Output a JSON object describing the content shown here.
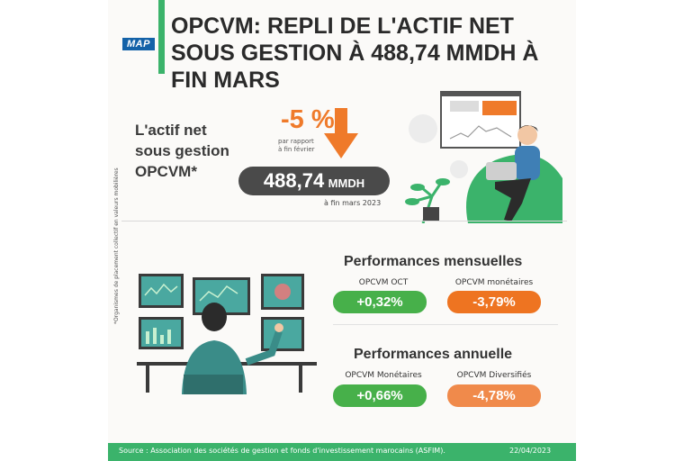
{
  "header": {
    "logo": "MAP",
    "title": "OPCVM: REPLI DE L'ACTIF NET SOUS GESTION À 488,74 MMDH À FIN MARS"
  },
  "side_note": "*Organismes de placement collectif en valeurs mobilières",
  "actif": {
    "label": "L'actif net sous gestion OPCVM*",
    "change": "-5 %",
    "change_note": "par rapport à fin février",
    "value": "488,74",
    "unit": "MMDH",
    "date_note": "à fin mars 2023"
  },
  "mensuelles": {
    "title": "Performances mensuelles",
    "items": [
      {
        "label": "OPCVM OCT",
        "value": "+0,32%",
        "color": "#47b04a"
      },
      {
        "label": "OPCVM monétaires",
        "value": "-3,79%",
        "color": "#ee7421"
      }
    ]
  },
  "annuelle": {
    "title": "Performances annuelle",
    "items": [
      {
        "label": "OPCVM Monétaires",
        "value": "+0,66%",
        "color": "#47b04a"
      },
      {
        "label": "OPCVM Diversifiés",
        "value": "-4,78%",
        "color": "#f08a4b"
      }
    ]
  },
  "footer": {
    "source": "Source : Association des sociétés de gestion et fonds d'investissement marocains (ASFIM).",
    "date": "22/04/2023"
  },
  "colors": {
    "green": "#3bb36b",
    "orange": "#ef7a2a",
    "dark": "#4a4a4a"
  }
}
